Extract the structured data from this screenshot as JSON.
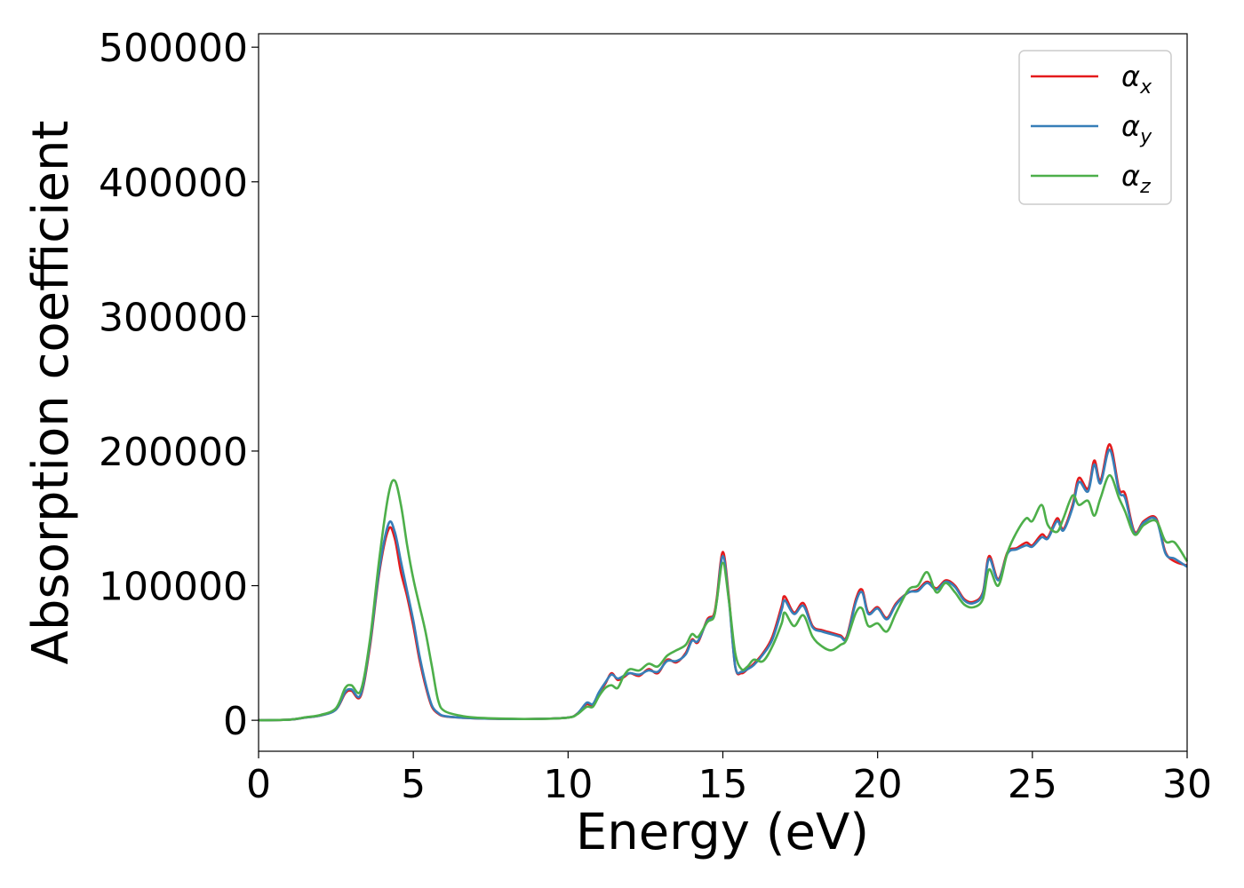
{
  "chart_data": {
    "type": "line",
    "title": "",
    "xlabel": "Energy (eV)",
    "ylabel": "Absorption coefficient",
    "xlim": [
      0,
      30
    ],
    "ylim": [
      -23000,
      510000
    ],
    "xticks": [
      0,
      5,
      10,
      15,
      20,
      25,
      30
    ],
    "xtick_labels": [
      "0",
      "5",
      "10",
      "15",
      "20",
      "25",
      "30"
    ],
    "yticks": [
      0,
      100000,
      200000,
      300000,
      400000,
      500000
    ],
    "ytick_labels": [
      "0",
      "100000",
      "200000",
      "300000",
      "400000",
      "500000"
    ],
    "grid": false,
    "legend_position": "top-right",
    "series": [
      {
        "name": "αx",
        "legend_base": "α",
        "legend_sub": "x",
        "color": "#e41a1c",
        "x": [
          0,
          1,
          1.5,
          2,
          2.5,
          2.8,
          3.0,
          3.3,
          3.6,
          3.9,
          4.2,
          4.4,
          4.6,
          4.8,
          5.0,
          5.2,
          5.4,
          5.6,
          5.8,
          6.0,
          6.5,
          7,
          8,
          9,
          10,
          10.3,
          10.6,
          10.8,
          11.0,
          11.2,
          11.4,
          11.6,
          11.8,
          12.0,
          12.3,
          12.6,
          12.9,
          13.2,
          13.5,
          13.8,
          14.0,
          14.2,
          14.5,
          14.7,
          14.8,
          15.0,
          15.2,
          15.4,
          15.6,
          15.8,
          16.0,
          16.3,
          16.6,
          16.9,
          17.0,
          17.3,
          17.6,
          17.9,
          18.2,
          18.5,
          18.8,
          19.0,
          19.3,
          19.5,
          19.7,
          20.0,
          20.3,
          20.6,
          21.0,
          21.3,
          21.6,
          21.9,
          22.2,
          22.5,
          22.8,
          23.1,
          23.4,
          23.6,
          23.9,
          24.2,
          24.5,
          24.8,
          25.0,
          25.3,
          25.5,
          25.8,
          26.0,
          26.3,
          26.5,
          26.8,
          27.0,
          27.2,
          27.5,
          27.8,
          28.0,
          28.3,
          28.6,
          29.0,
          29.3,
          29.6,
          30.0
        ],
        "y": [
          0,
          500,
          2000,
          3500,
          8000,
          20000,
          22000,
          18000,
          55000,
          110000,
          142000,
          135000,
          110000,
          92000,
          70000,
          45000,
          25000,
          10000,
          5000,
          3000,
          2000,
          1500,
          1000,
          1000,
          2000,
          5000,
          12000,
          11000,
          20000,
          27000,
          35000,
          30000,
          32000,
          35000,
          33000,
          38000,
          35000,
          45000,
          43000,
          50000,
          60000,
          58000,
          75000,
          78000,
          90000,
          125000,
          90000,
          40000,
          35000,
          38000,
          42000,
          50000,
          62000,
          85000,
          92000,
          80000,
          87000,
          70000,
          67000,
          65000,
          63000,
          62000,
          90000,
          97000,
          80000,
          84000,
          76000,
          87000,
          95000,
          97000,
          103000,
          98000,
          104000,
          100000,
          90000,
          88000,
          95000,
          122000,
          105000,
          125000,
          128000,
          132000,
          130000,
          138000,
          136000,
          150000,
          142000,
          160000,
          180000,
          172000,
          193000,
          178000,
          205000,
          172000,
          168000,
          140000,
          148000,
          150000,
          125000,
          118000,
          115000
        ]
      },
      {
        "name": "αy",
        "legend_base": "α",
        "legend_sub": "y",
        "color": "#377eb8",
        "x": [
          0,
          1,
          1.5,
          2,
          2.5,
          2.8,
          3.0,
          3.3,
          3.6,
          3.9,
          4.2,
          4.4,
          4.6,
          4.8,
          5.0,
          5.2,
          5.4,
          5.6,
          5.8,
          6.0,
          6.5,
          7,
          8,
          9,
          10,
          10.3,
          10.6,
          10.8,
          11.0,
          11.2,
          11.4,
          11.6,
          11.8,
          12.0,
          12.3,
          12.6,
          12.9,
          13.2,
          13.5,
          13.8,
          14.0,
          14.2,
          14.5,
          14.7,
          14.8,
          15.0,
          15.2,
          15.4,
          15.6,
          15.8,
          16.0,
          16.3,
          16.6,
          16.9,
          17.0,
          17.3,
          17.6,
          17.9,
          18.2,
          18.5,
          18.8,
          19.0,
          19.3,
          19.5,
          19.7,
          20.0,
          20.3,
          20.6,
          21.0,
          21.3,
          21.6,
          21.9,
          22.2,
          22.5,
          22.8,
          23.1,
          23.4,
          23.6,
          23.9,
          24.2,
          24.5,
          24.8,
          25.0,
          25.3,
          25.5,
          25.8,
          26.0,
          26.3,
          26.5,
          26.8,
          27.0,
          27.2,
          27.5,
          27.8,
          28.0,
          28.3,
          28.6,
          29.0,
          29.3,
          29.6,
          30.0
        ],
        "y": [
          0,
          500,
          2000,
          3500,
          8000,
          21000,
          23000,
          19000,
          57000,
          112000,
          146000,
          140000,
          118000,
          96000,
          74000,
          48000,
          27000,
          11000,
          5500,
          3200,
          2000,
          1500,
          1000,
          1000,
          2000,
          5000,
          13000,
          12000,
          21000,
          28000,
          34000,
          31000,
          33000,
          35000,
          34000,
          37000,
          36000,
          44000,
          44000,
          49000,
          59000,
          59000,
          74000,
          77000,
          88000,
          122000,
          88000,
          40000,
          36000,
          38000,
          41000,
          49000,
          60000,
          82000,
          89000,
          79000,
          85000,
          69000,
          66000,
          64000,
          62000,
          61000,
          88000,
          95000,
          79000,
          83000,
          75000,
          86000,
          95000,
          96000,
          102000,
          97000,
          103000,
          99000,
          89000,
          87000,
          94000,
          120000,
          104000,
          124000,
          127000,
          130000,
          129000,
          136000,
          135000,
          148000,
          141000,
          158000,
          177000,
          170000,
          190000,
          176000,
          201000,
          170000,
          165000,
          139000,
          147000,
          149000,
          124000,
          120000,
          114000
        ]
      },
      {
        "name": "αz",
        "legend_base": "α",
        "legend_sub": "z",
        "color": "#4daf4a",
        "x": [
          0,
          1,
          1.5,
          2,
          2.5,
          2.8,
          3.0,
          3.3,
          3.6,
          3.9,
          4.2,
          4.4,
          4.6,
          4.8,
          5.0,
          5.2,
          5.4,
          5.6,
          5.8,
          6.0,
          6.5,
          7,
          8,
          9,
          10,
          10.3,
          10.6,
          10.8,
          11.0,
          11.2,
          11.4,
          11.6,
          11.8,
          12.0,
          12.3,
          12.6,
          12.9,
          13.2,
          13.5,
          13.8,
          14.0,
          14.2,
          14.5,
          14.7,
          14.8,
          15.0,
          15.2,
          15.4,
          15.6,
          15.8,
          16.0,
          16.3,
          16.6,
          16.9,
          17.0,
          17.3,
          17.6,
          17.9,
          18.2,
          18.5,
          18.8,
          19.0,
          19.3,
          19.5,
          19.7,
          20.0,
          20.3,
          20.6,
          21.0,
          21.3,
          21.6,
          21.9,
          22.2,
          22.5,
          22.8,
          23.1,
          23.4,
          23.6,
          23.9,
          24.2,
          24.5,
          24.8,
          25.0,
          25.3,
          25.5,
          25.8,
          26.0,
          26.3,
          26.5,
          26.8,
          27.0,
          27.2,
          27.5,
          27.8,
          28.0,
          28.3,
          28.6,
          29.0,
          29.3,
          29.6,
          30.0
        ],
        "y": [
          0,
          500,
          2200,
          4000,
          9000,
          24000,
          26000,
          22000,
          60000,
          120000,
          168000,
          178000,
          160000,
          130000,
          105000,
          85000,
          65000,
          40000,
          15000,
          7000,
          3500,
          2000,
          1200,
          1000,
          2000,
          4500,
          10000,
          10000,
          18000,
          24000,
          26000,
          24000,
          33000,
          38000,
          37000,
          42000,
          40000,
          48000,
          52000,
          56000,
          64000,
          62000,
          73000,
          76000,
          88000,
          117000,
          88000,
          50000,
          38000,
          40000,
          45000,
          44000,
          55000,
          72000,
          80000,
          70000,
          78000,
          62000,
          55000,
          52000,
          56000,
          60000,
          80000,
          83000,
          70000,
          72000,
          66000,
          80000,
          97000,
          100000,
          110000,
          95000,
          102000,
          95000,
          86000,
          84000,
          90000,
          112000,
          100000,
          125000,
          140000,
          150000,
          148000,
          160000,
          145000,
          140000,
          150000,
          167000,
          160000,
          163000,
          152000,
          165000,
          182000,
          165000,
          155000,
          138000,
          145000,
          148000,
          133000,
          132000,
          118000
        ]
      }
    ]
  }
}
